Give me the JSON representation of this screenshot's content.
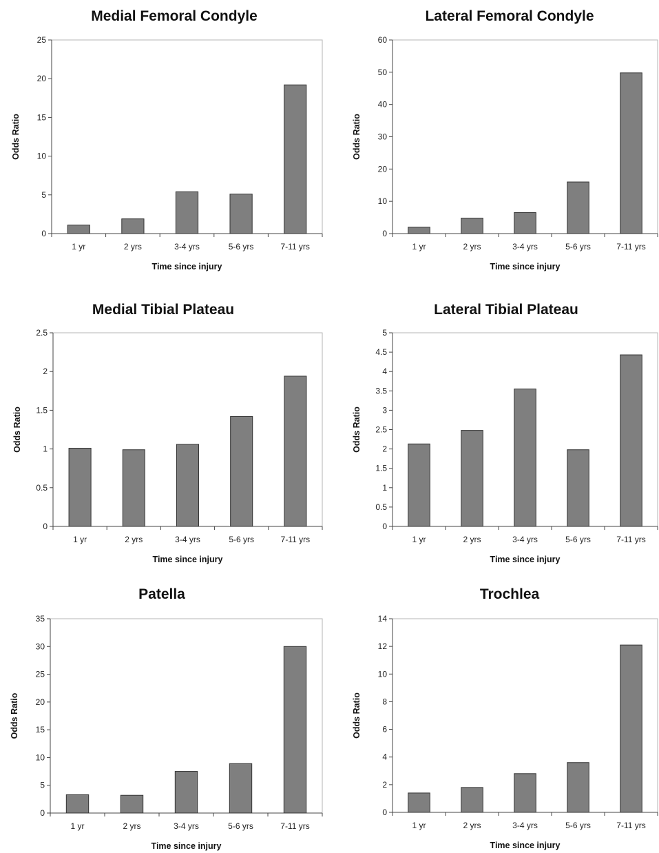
{
  "chart_data": [
    {
      "type": "bar",
      "title": "Medial Femoral Condyle",
      "categories": [
        "1 yr",
        "2 yrs",
        "3-4 yrs",
        "5-6 yrs",
        "7-11 yrs"
      ],
      "values": [
        1.1,
        1.9,
        5.4,
        5.1,
        19.2
      ],
      "xlabel": "Time since injury",
      "ylabel": "Odds Ratio",
      "ylim": [
        0,
        25
      ],
      "yticks": [
        "0",
        "5",
        "10",
        "15",
        "20",
        "25"
      ],
      "bar_color": "#7f7f7f"
    },
    {
      "type": "bar",
      "title": "Lateral Femoral Condyle",
      "categories": [
        "1 yr",
        "2 yrs",
        "3-4 yrs",
        "5-6 yrs",
        "7-11 yrs"
      ],
      "values": [
        2,
        4.8,
        6.5,
        16,
        49.8
      ],
      "xlabel": "Time since injury",
      "ylabel": "Odds Ratio",
      "ylim": [
        0,
        60
      ],
      "yticks": [
        "0",
        "10",
        "20",
        "30",
        "40",
        "50",
        "60"
      ],
      "bar_color": "#7f7f7f"
    },
    {
      "type": "bar",
      "title": "Medial Tibial Plateau",
      "categories": [
        "1 yr",
        "2 yrs",
        "3-4 yrs",
        "5-6 yrs",
        "7-11 yrs"
      ],
      "values": [
        1.01,
        0.99,
        1.06,
        1.42,
        1.94
      ],
      "xlabel": "Time since injury",
      "ylabel": "Odds Ratio",
      "ylim": [
        0,
        2.5
      ],
      "yticks": [
        "0",
        "0.5",
        "1",
        "1.5",
        "2",
        "2.5"
      ],
      "bar_color": "#7f7f7f"
    },
    {
      "type": "bar",
      "title": "Lateral Tibial Plateau",
      "categories": [
        "1 yr",
        "2 yrs",
        "3-4 yrs",
        "5-6 yrs",
        "7-11 yrs"
      ],
      "values": [
        2.13,
        2.48,
        3.55,
        1.98,
        4.43
      ],
      "xlabel": "Time since injury",
      "ylabel": "Odds Ratio",
      "ylim": [
        0,
        5
      ],
      "yticks": [
        "0",
        "0.5",
        "1",
        "1.5",
        "2",
        "2.5",
        "3",
        "3.5",
        "4",
        "4.5",
        "5"
      ],
      "bar_color": "#7f7f7f"
    },
    {
      "type": "bar",
      "title": "Patella",
      "categories": [
        "1 yr",
        "2 yrs",
        "3-4 yrs",
        "5-6 yrs",
        "7-11 yrs"
      ],
      "values": [
        3.3,
        3.2,
        7.5,
        8.9,
        30
      ],
      "xlabel": "Time since injury",
      "ylabel": "Odds Ratio",
      "ylim": [
        0,
        35
      ],
      "yticks": [
        "0",
        "5",
        "10",
        "15",
        "20",
        "25",
        "30",
        "35"
      ],
      "bar_color": "#7f7f7f"
    },
    {
      "type": "bar",
      "title": "Trochlea",
      "categories": [
        "1 yr",
        "2 yrs",
        "3-4 yrs",
        "5-6 yrs",
        "7-11 yrs"
      ],
      "values": [
        1.4,
        1.8,
        2.8,
        3.6,
        12.1
      ],
      "xlabel": "Time since injury",
      "ylabel": "Odds Ratio",
      "ylim": [
        0,
        14
      ],
      "yticks": [
        "0",
        "2",
        "4",
        "6",
        "8",
        "10",
        "12",
        "14"
      ],
      "bar_color": "#7f7f7f"
    }
  ]
}
